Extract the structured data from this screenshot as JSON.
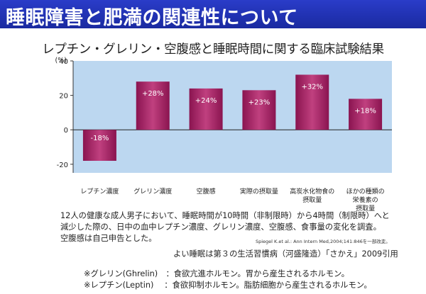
{
  "header": {
    "title": "睡眠障害と肥満の関連性について"
  },
  "chart_data": {
    "type": "bar",
    "title": "レプチン・グレリン・空腹感と睡眠時間に関する臨床試験結果",
    "ylabel": "(%)",
    "ylim": [
      -25,
      40
    ],
    "yticks": [
      40,
      20,
      0,
      -20
    ],
    "categories": [
      [
        "レプチン濃度"
      ],
      [
        "グレリン濃度"
      ],
      [
        "空腹感"
      ],
      [
        "実際の摂取量"
      ],
      [
        "高炭水化物食の",
        "摂取量"
      ],
      [
        "ほかの種類の",
        "栄養素の",
        "摂取量"
      ]
    ],
    "values": [
      -18,
      28,
      24,
      23,
      32,
      18
    ],
    "data_labels": [
      "-18%",
      "+28%",
      "+24%",
      "+23%",
      "+32%",
      "+18%"
    ],
    "colors": {
      "bar_dark": "#8a1450",
      "bar_light": "#c0407f",
      "plot_bg": "#bcd7f0"
    }
  },
  "description": [
    "12人の健康な成人男子において、睡眠時間が10時間（非制限時）から4時間（制限時）へと",
    "減少した際の、日中の血中レプチン濃度、グレリン濃度、空腹感、食事量の変化を調査。",
    "空腹感は自己申告とした。"
  ],
  "citation": "Spiegel K.et al.: Ann Intern Med,2004;141:846を一部改変。",
  "reference": "よい睡眠は第３の生活習慣病（河盛隆造）「さかえ」2009引用",
  "notes": [
    "※グレリン(Ghrelin)　：食欲亢進ホルモン。胃から産生されるホルモン。",
    "※レプチン(Leptin)　 ：食欲抑制ホルモン。脂肪細胞から産生されるホルモン。"
  ]
}
